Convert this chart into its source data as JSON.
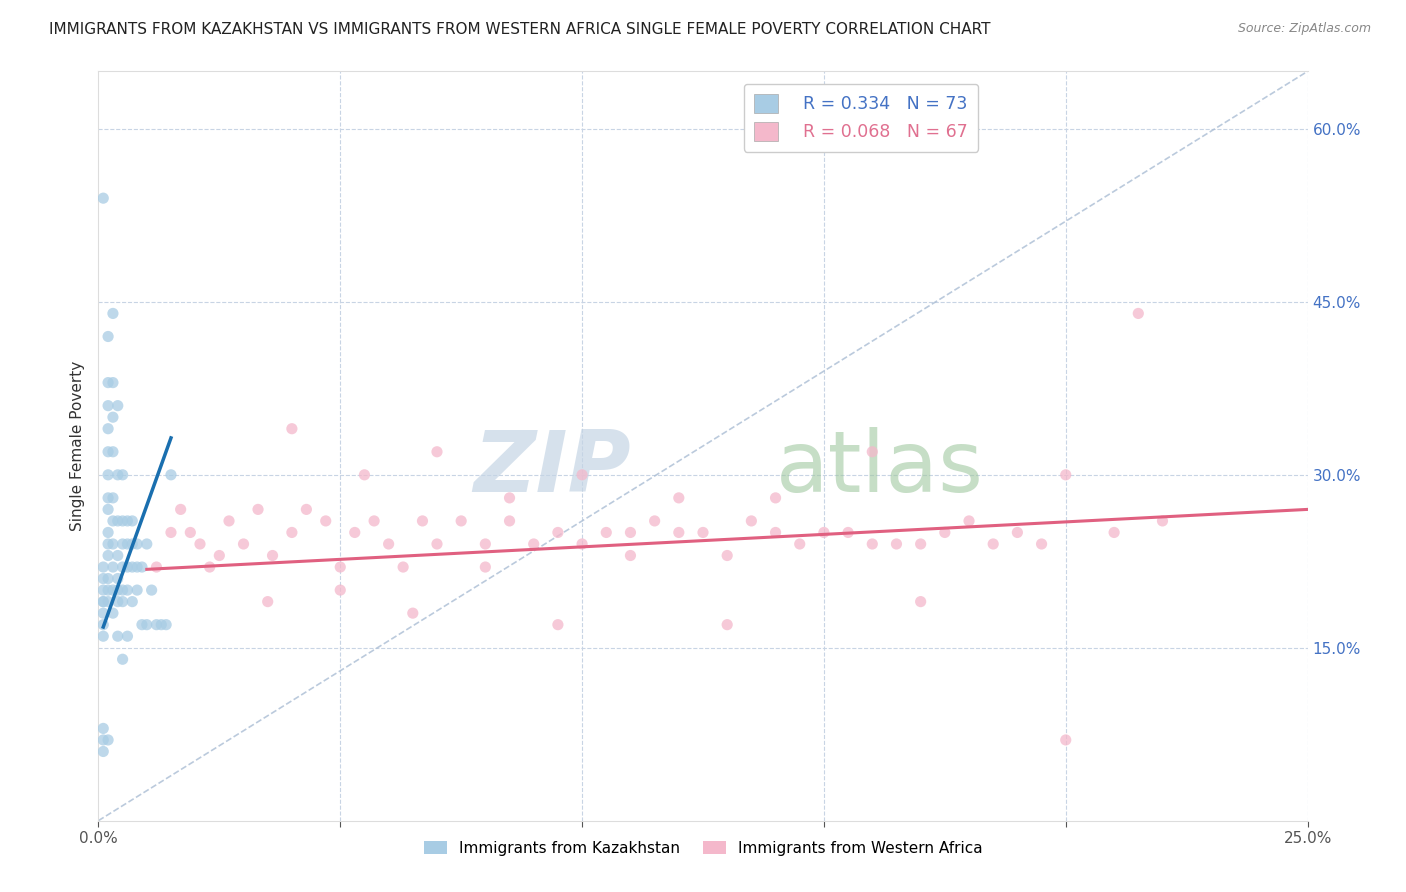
{
  "title": "IMMIGRANTS FROM KAZAKHSTAN VS IMMIGRANTS FROM WESTERN AFRICA SINGLE FEMALE POVERTY CORRELATION CHART",
  "source": "Source: ZipAtlas.com",
  "ylabel": "Single Female Poverty",
  "ytick_values": [
    0.15,
    0.3,
    0.45,
    0.6
  ],
  "ytick_labels": [
    "15.0%",
    "30.0%",
    "45.0%",
    "60.0%"
  ],
  "xtick_values": [
    0.0,
    0.05,
    0.1,
    0.15,
    0.2,
    0.25
  ],
  "xtick_labels": [
    "0.0%",
    "",
    "",
    "",
    "",
    "25.0%"
  ],
  "xlim": [
    0.0,
    0.25
  ],
  "ylim": [
    0.0,
    0.65
  ],
  "legend_R1": "R = 0.334",
  "legend_N1": "N = 73",
  "legend_R2": "R = 0.068",
  "legend_N2": "N = 67",
  "color_kaz": "#a8cce4",
  "color_waf": "#f4b8cb",
  "trendline_kaz_color": "#1a6faf",
  "trendline_waf_color": "#e06080",
  "trendline_ref_color": "#aabdd4",
  "watermark_zip_color": "#c5d5e5",
  "watermark_atlas_color": "#a0c8a0",
  "legend_text_kaz_color": "#4472c4",
  "legend_text_waf_color": "#e07090",
  "kaz_x": [
    0.001,
    0.001,
    0.001,
    0.001,
    0.001,
    0.002,
    0.002,
    0.002,
    0.002,
    0.002,
    0.002,
    0.002,
    0.002,
    0.002,
    0.002,
    0.002,
    0.002,
    0.002,
    0.002,
    0.002,
    0.003,
    0.003,
    0.003,
    0.003,
    0.003,
    0.003,
    0.003,
    0.003,
    0.003,
    0.003,
    0.004,
    0.004,
    0.004,
    0.004,
    0.004,
    0.004,
    0.004,
    0.004,
    0.005,
    0.005,
    0.005,
    0.005,
    0.005,
    0.005,
    0.005,
    0.006,
    0.006,
    0.006,
    0.006,
    0.006,
    0.007,
    0.007,
    0.007,
    0.007,
    0.008,
    0.008,
    0.008,
    0.009,
    0.009,
    0.01,
    0.01,
    0.011,
    0.012,
    0.013,
    0.014,
    0.015,
    0.001,
    0.001,
    0.001,
    0.001,
    0.001,
    0.001,
    0.001
  ],
  "kaz_y": [
    0.54,
    0.19,
    0.18,
    0.17,
    0.16,
    0.42,
    0.38,
    0.36,
    0.34,
    0.32,
    0.3,
    0.28,
    0.27,
    0.25,
    0.24,
    0.23,
    0.21,
    0.2,
    0.19,
    0.07,
    0.44,
    0.38,
    0.35,
    0.32,
    0.28,
    0.26,
    0.24,
    0.22,
    0.2,
    0.18,
    0.36,
    0.3,
    0.26,
    0.23,
    0.21,
    0.2,
    0.19,
    0.16,
    0.3,
    0.26,
    0.24,
    0.22,
    0.2,
    0.19,
    0.14,
    0.26,
    0.24,
    0.22,
    0.2,
    0.16,
    0.26,
    0.24,
    0.22,
    0.19,
    0.24,
    0.22,
    0.2,
    0.22,
    0.17,
    0.24,
    0.17,
    0.2,
    0.17,
    0.17,
    0.17,
    0.3,
    0.22,
    0.21,
    0.2,
    0.19,
    0.08,
    0.07,
    0.06
  ],
  "waf_x": [
    0.012,
    0.015,
    0.017,
    0.019,
    0.021,
    0.023,
    0.025,
    0.027,
    0.03,
    0.033,
    0.036,
    0.04,
    0.043,
    0.047,
    0.05,
    0.053,
    0.057,
    0.06,
    0.063,
    0.067,
    0.07,
    0.075,
    0.08,
    0.085,
    0.09,
    0.095,
    0.1,
    0.105,
    0.11,
    0.115,
    0.12,
    0.125,
    0.13,
    0.135,
    0.14,
    0.145,
    0.15,
    0.155,
    0.16,
    0.165,
    0.17,
    0.175,
    0.18,
    0.185,
    0.19,
    0.195,
    0.2,
    0.21,
    0.215,
    0.22,
    0.04,
    0.055,
    0.07,
    0.085,
    0.1,
    0.12,
    0.14,
    0.16,
    0.05,
    0.08,
    0.11,
    0.035,
    0.065,
    0.095,
    0.13,
    0.17,
    0.2
  ],
  "waf_y": [
    0.22,
    0.25,
    0.27,
    0.25,
    0.24,
    0.22,
    0.23,
    0.26,
    0.24,
    0.27,
    0.23,
    0.25,
    0.27,
    0.26,
    0.22,
    0.25,
    0.26,
    0.24,
    0.22,
    0.26,
    0.24,
    0.26,
    0.24,
    0.26,
    0.24,
    0.25,
    0.24,
    0.25,
    0.23,
    0.26,
    0.25,
    0.25,
    0.23,
    0.26,
    0.25,
    0.24,
    0.25,
    0.25,
    0.24,
    0.24,
    0.24,
    0.25,
    0.26,
    0.24,
    0.25,
    0.24,
    0.3,
    0.25,
    0.44,
    0.26,
    0.34,
    0.3,
    0.32,
    0.28,
    0.3,
    0.28,
    0.28,
    0.32,
    0.2,
    0.22,
    0.25,
    0.19,
    0.18,
    0.17,
    0.17,
    0.19,
    0.07
  ],
  "kaz_trendline_x": [
    0.001,
    0.015
  ],
  "kaz_trendline_y": [
    0.168,
    0.332
  ],
  "waf_trendline_x": [
    0.01,
    0.25
  ],
  "waf_trendline_y": [
    0.218,
    0.27
  ]
}
